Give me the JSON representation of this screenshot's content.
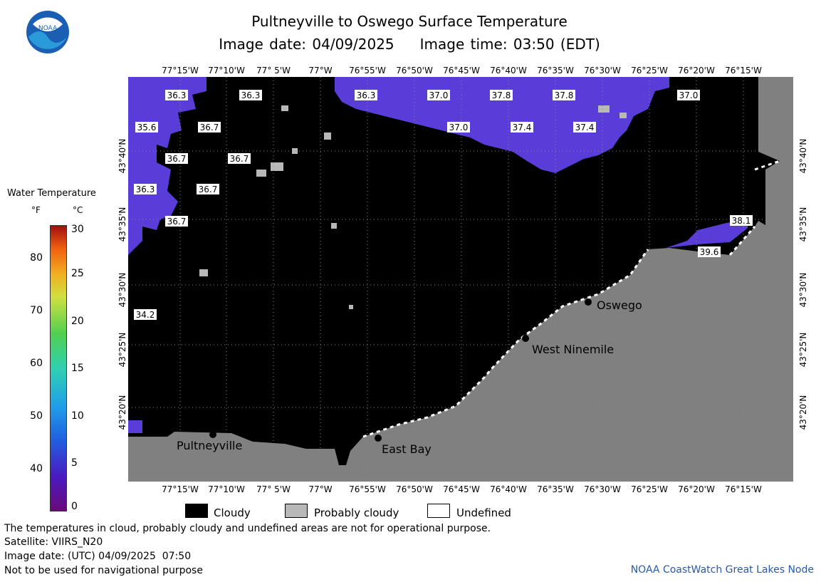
{
  "title": "Pultneyville to Oswego Surface Temperature",
  "image_date_label": "Image date: 04/09/2025",
  "image_time_label": "Image time: 03:50 (EDT)",
  "logo_text": "NOAA",
  "legend": {
    "title": "Water Temperature",
    "unit_f": "°F",
    "unit_c": "°C",
    "f_ticks": [
      "80",
      "70",
      "60",
      "50",
      "40"
    ],
    "c_ticks": [
      "30",
      "25",
      "20",
      "15",
      "10",
      "5",
      "0"
    ],
    "colors": {
      "cold": "#6a0a7a",
      "warm": "#a01010"
    }
  },
  "longitude_labels": [
    "77°15'W",
    "77°10'W",
    "77° 5'W",
    "77°W",
    "76°55'W",
    "76°50'W",
    "76°45'W",
    "76°40'W",
    "76°35'W",
    "76°30'W",
    "76°25'W",
    "76°20'W",
    "76°15'W"
  ],
  "latitude_labels": [
    "43°40'N",
    "43°35'N",
    "43°30'N",
    "43°25'N",
    "43°20'N"
  ],
  "temperature_labels": [
    "36.3",
    "36.3",
    "36.3",
    "37.0",
    "37.8",
    "37.8",
    "37.0",
    "35.6",
    "36.7",
    "37.0",
    "37.4",
    "37.4",
    "36.7",
    "36.7",
    "36.3",
    "36.7",
    "36.7",
    "38.1",
    "39.6",
    "34.2"
  ],
  "places": [
    "Oswego",
    "West Ninemile",
    "Pultneyville",
    "East Bay"
  ],
  "key": {
    "cloudy": "Cloudy",
    "probably_cloudy": "Probably cloudy",
    "undefined": "Undefined"
  },
  "notes": {
    "line1": "The temperatures in cloud, probably cloudy and undefined areas are not for operational purpose.",
    "line2": "Satellite: VIIRS_N20",
    "line3": "Image date: (UTC) 04/09/2025  07:50",
    "line4": "Not to be used for navigational purpose"
  },
  "credit": "NOAA CoastWatch Great Lakes Node",
  "colors": {
    "land": "#808080",
    "cloud": "#000000",
    "prob_cloud": "#b8b8b8",
    "water": "#5a3cd8"
  }
}
